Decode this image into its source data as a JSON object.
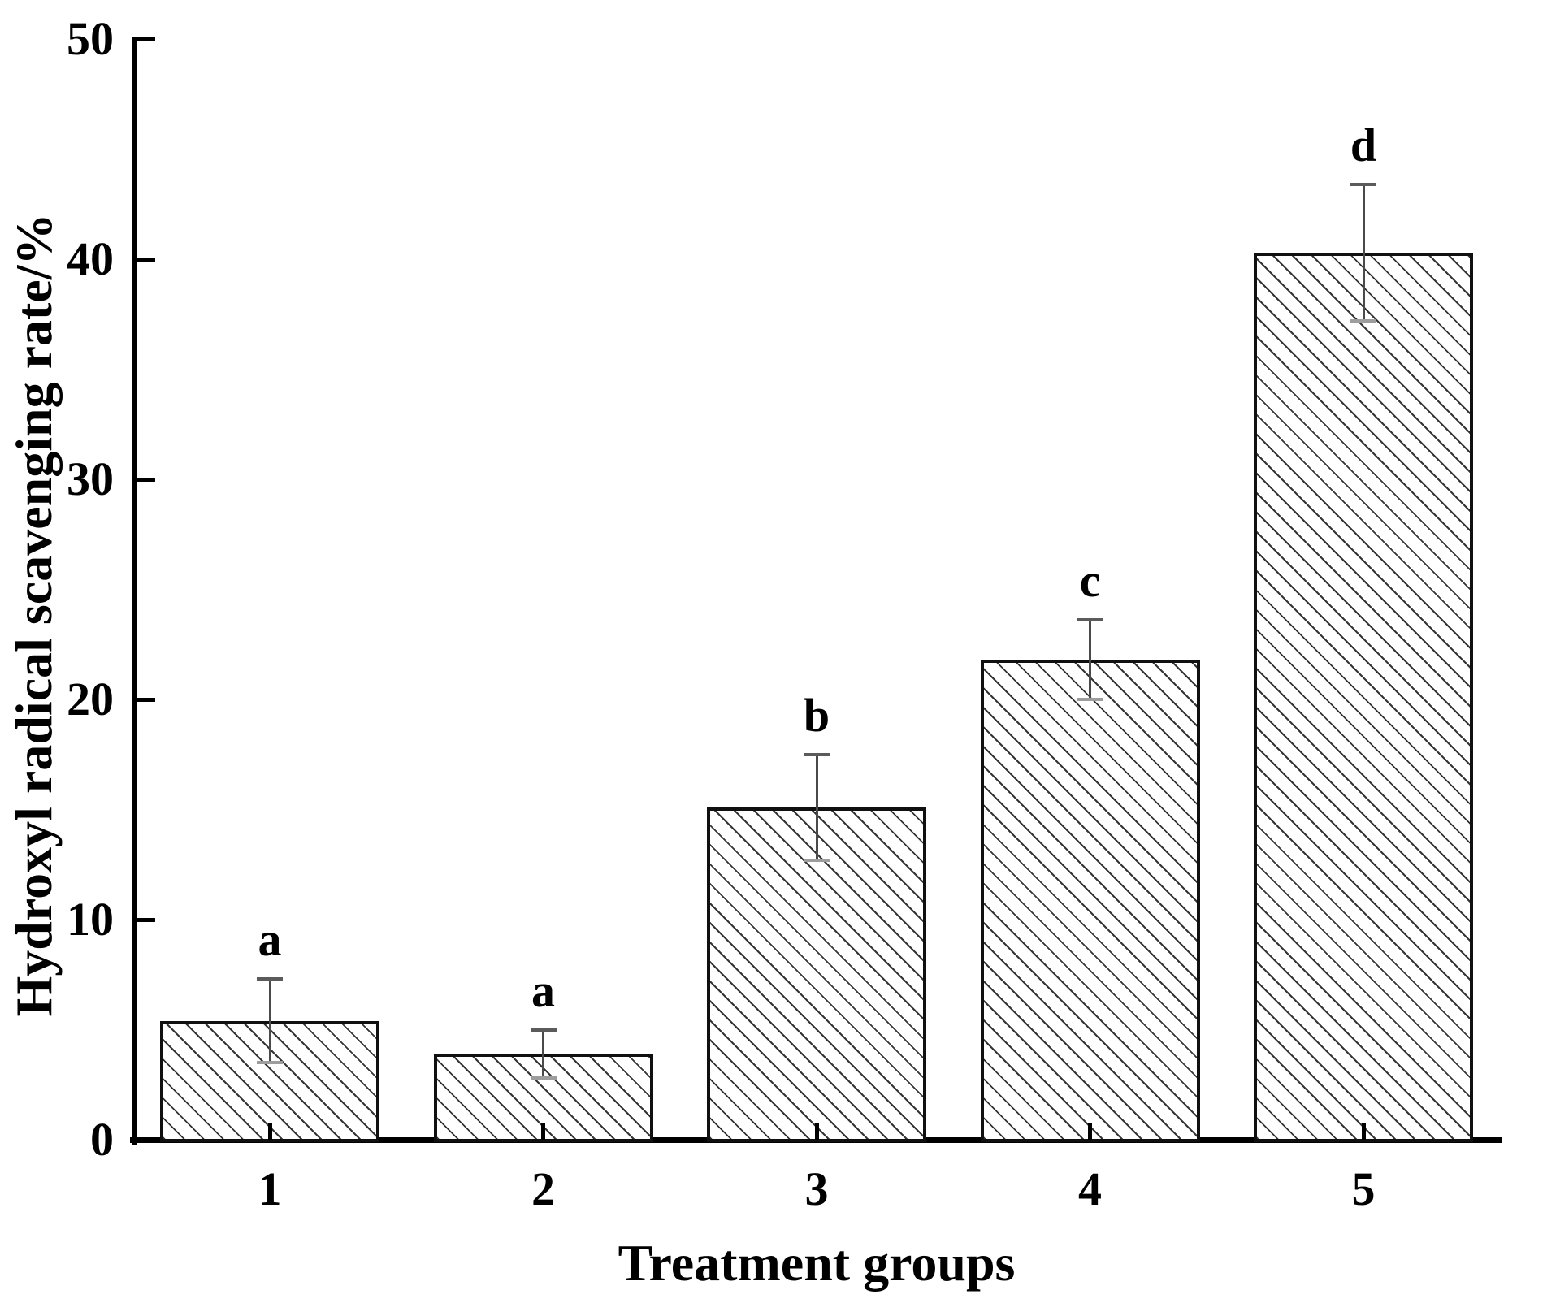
{
  "chart_data": {
    "type": "bar",
    "title": "",
    "xlabel": "Treatment groups",
    "ylabel": "Hydroxyl radical scavenging rate/%",
    "categories": [
      "1",
      "2",
      "3",
      "4",
      "5"
    ],
    "values": [
      5.4,
      3.9,
      15.1,
      21.8,
      40.3
    ],
    "errors": [
      1.9,
      1.1,
      2.4,
      1.8,
      3.1
    ],
    "sig_letters": [
      "a",
      "a",
      "b",
      "c",
      "d"
    ],
    "ylim": [
      0,
      50
    ],
    "yticks": [
      0,
      10,
      20,
      30,
      40,
      50
    ],
    "grid": false,
    "legend": "none",
    "bar_fill": "diagonal-hatch",
    "colors": {
      "background": "#ffffff",
      "axis": "#000000",
      "bar_outline": "#101010",
      "hatch_line": "#343434",
      "error_bar_line": "#4a4a4a",
      "error_cap_top": "#5b5b5b",
      "error_cap_bottom": "#9d9d9d",
      "text": "#000000"
    }
  }
}
